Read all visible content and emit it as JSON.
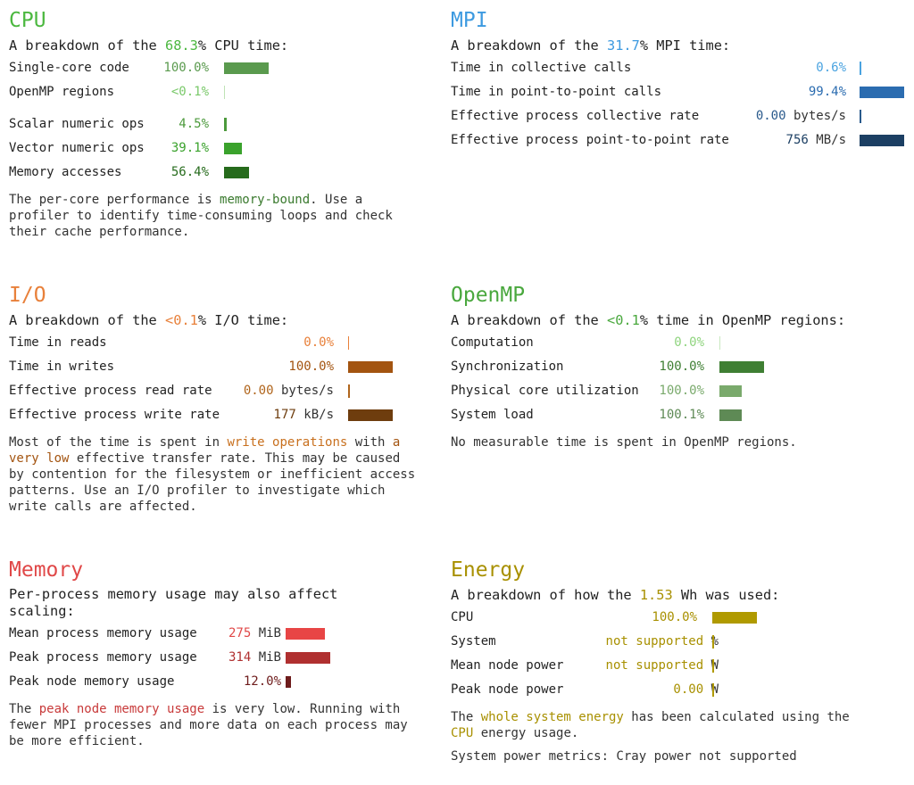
{
  "cpu": {
    "title": "CPU",
    "intro_pre": "A breakdown of the ",
    "intro_value": "68.3",
    "intro_post": "% CPU time:",
    "rows": [
      {
        "label": "Single-core code",
        "value": "100.0",
        "unit": "%",
        "pct": 100,
        "color": "#5a9a4e"
      },
      {
        "label": "OpenMP regions",
        "value": "<0.1",
        "unit": "%",
        "pct": 0.1,
        "color": "#7ac96a"
      },
      {
        "label": "Scalar numeric ops",
        "value": "4.5",
        "unit": "%",
        "pct": 4.5,
        "color": "#4c9a3c"
      },
      {
        "label": "Vector numeric ops",
        "value": "39.1",
        "unit": "%",
        "pct": 39.1,
        "color": "#3aa22c"
      },
      {
        "label": "Memory accesses",
        "value": "56.4",
        "unit": "%",
        "pct": 56.4,
        "color": "#266b1c"
      }
    ],
    "para_1": "The per-core performance is ",
    "para_hl": "memory-bound",
    "para_2": ". Use a profiler to identify time-consuming loops and check their cache performance."
  },
  "mpi": {
    "title": "MPI",
    "intro_pre": "A breakdown of the ",
    "intro_value": "31.7",
    "intro_post": "% MPI time:",
    "rows": [
      {
        "label": "Time in collective calls",
        "value": "0.6",
        "unit": "%",
        "pct": 0.6,
        "color": "#4aa3e0"
      },
      {
        "label": "Time in point-to-point calls",
        "value": "99.4",
        "unit": "%",
        "pct": 99.4,
        "color": "#2b6cb0"
      },
      {
        "label": "Effective process collective rate",
        "value": "0.00",
        "unit": "bytes/s",
        "pct": 0,
        "color": "#2a5a8c"
      },
      {
        "label": "Effective process point-to-point rate",
        "value": "756",
        "unit": "MB/s",
        "pct": 100,
        "color": "#1c3f63"
      }
    ]
  },
  "io": {
    "title": "I/O",
    "intro_pre": "A breakdown of the ",
    "intro_value": "<0.1",
    "intro_post": "% I/O time:",
    "rows": [
      {
        "label": "Time in reads",
        "value": "0.0",
        "unit": "%",
        "pct": 0,
        "color": "#e8803a"
      },
      {
        "label": "Time in writes",
        "value": "100.0",
        "unit": "%",
        "pct": 100,
        "color": "#a35410"
      },
      {
        "label": "Effective process read rate",
        "value": "0.00",
        "unit": "bytes/s",
        "pct": 0,
        "color": "#b0651c"
      },
      {
        "label": "Effective process write rate",
        "value": "177",
        "unit": "kB/s",
        "pct": 100,
        "color": "#6e3d0e"
      }
    ],
    "para_1": "Most of the time is spent in ",
    "para_hl1": "write operations",
    "para_2": " with ",
    "para_hl2": "a very low",
    "para_3": " effective transfer rate. This may be caused by contention for the filesystem or inefficient access patterns. Use an I/O profiler to investigate which write calls are affected."
  },
  "openmp": {
    "title": "OpenMP",
    "intro_pre": "A breakdown of the ",
    "intro_value": "<0.1",
    "intro_post": "% time in OpenMP regions:",
    "rows": [
      {
        "label": "Computation",
        "value": "0.0",
        "unit": "%",
        "pct": 0,
        "color": "#8fd47e"
      },
      {
        "label": "Synchronization",
        "value": "100.0",
        "unit": "%",
        "pct": 100,
        "color": "#3f7f33"
      },
      {
        "label": "Physical core utilization",
        "value": "100.0",
        "unit": "%",
        "pct": 100,
        "color": "#7aaa6c"
      },
      {
        "label": "System load",
        "value": "100.1",
        "unit": "%",
        "pct": 100.1,
        "color": "#5e8a55"
      }
    ],
    "para": "No measurable time is spent in OpenMP regions."
  },
  "memory": {
    "title": "Memory",
    "intro": "Per-process memory usage may also affect scaling:",
    "rows": [
      {
        "label": "Mean process memory usage",
        "value": "275",
        "unit": "MiB",
        "pct": 87.6,
        "color": "#e84545"
      },
      {
        "label": "Peak process memory usage",
        "value": "314",
        "unit": "MiB",
        "pct": 100,
        "color": "#b03030"
      },
      {
        "label": "Peak node memory usage",
        "value": "12.0",
        "unit": "%",
        "pct": 12,
        "color": "#6e1c1c"
      }
    ],
    "para_1": "The ",
    "para_hl": "peak node memory usage",
    "para_2": " is very low. Running with fewer MPI processes and more data on each process may be more efficient."
  },
  "energy": {
    "title": "Energy",
    "intro_pre": "A breakdown of how the ",
    "intro_value": "1.53",
    "intro_post": " Wh was used:",
    "rows": [
      {
        "label": "CPU",
        "value": "100.0",
        "unit": "%",
        "pct": 100,
        "color": "#b09a00"
      },
      {
        "label": "System",
        "value": "not supported",
        "unit": "%",
        "pct": 0,
        "color": "#b09a00"
      },
      {
        "label": "Mean node power",
        "value": "not supported",
        "unit": "W",
        "pct": 0,
        "color": "#b09a00"
      },
      {
        "label": "Peak node power",
        "value": "0.00",
        "unit": "W",
        "pct": 0,
        "color": "#b09a00"
      }
    ],
    "para_1": "The ",
    "para_hl1": "whole system energy",
    "para_2": " has been calculated using the ",
    "para_hl2": "CPU",
    "para_3": " energy usage.",
    "para_extra": "System power metrics: Cray power not supported"
  },
  "colors": {
    "cpu": "#4cb840",
    "mpi": "#3d9ae0",
    "io": "#e8803a",
    "openmp": "#4aa83e",
    "memory": "#e04848",
    "energy": "#a89000"
  }
}
